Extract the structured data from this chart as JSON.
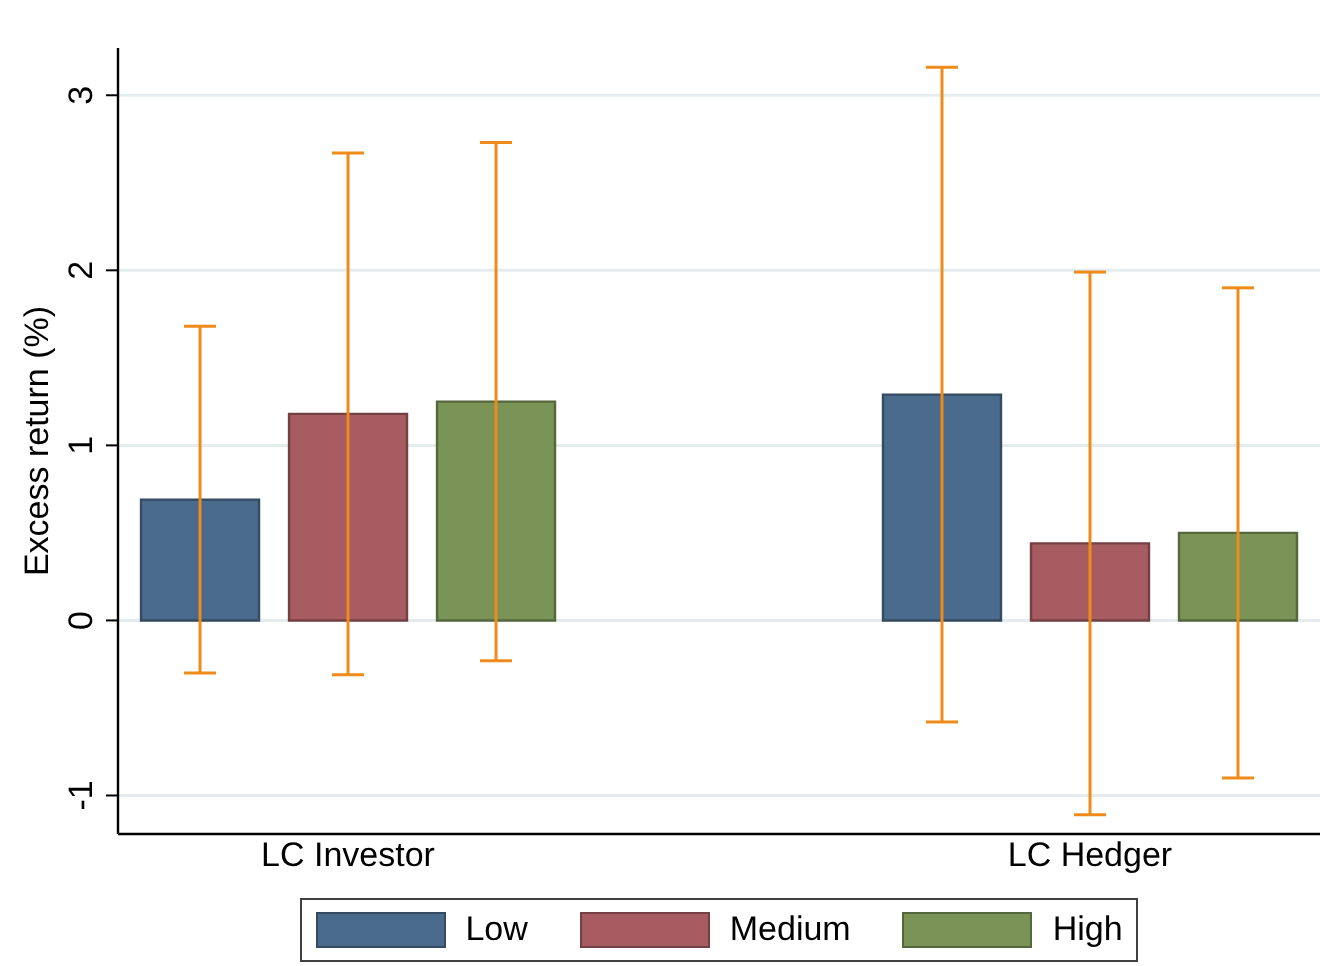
{
  "chart_data": {
    "type": "bar",
    "ylabel": "Excess return (%)",
    "categories": [
      "LC Investor",
      "LC Hedger"
    ],
    "series": [
      {
        "name": "Low",
        "color": "#4a6b8c",
        "values": [
          0.69,
          1.29
        ],
        "errors": [
          0.99,
          1.87
        ]
      },
      {
        "name": "Medium",
        "color": "#a65c60",
        "values": [
          1.18,
          0.44
        ],
        "errors": [
          1.49,
          1.55
        ]
      },
      {
        "name": "High",
        "color": "#7a9356",
        "values": [
          1.25,
          0.5
        ],
        "errors": [
          1.48,
          1.4
        ]
      }
    ],
    "ylim": [
      -1.22,
      3.27
    ],
    "yticks": [
      -1,
      0,
      1,
      2,
      3
    ],
    "grid": "y",
    "legend": "bottom"
  }
}
